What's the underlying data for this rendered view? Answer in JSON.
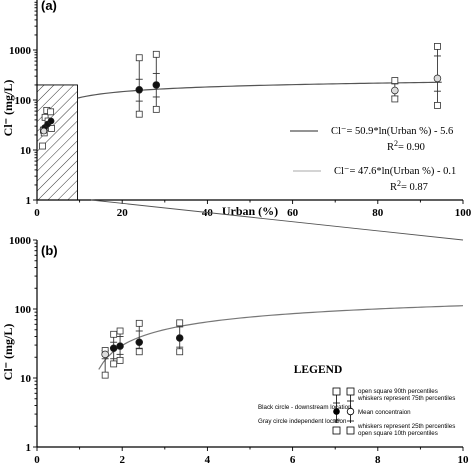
{
  "chart_data": [
    {
      "panel": "(a)",
      "type": "scatter",
      "xlabel": "Urban (%)",
      "ylabel": "Cl⁻ (mg/L)",
      "xlim": [
        0,
        100
      ],
      "ylim": [
        1,
        10000
      ],
      "yscale": "log",
      "x_ticks": [
        0,
        20,
        40,
        60,
        80,
        100
      ],
      "y_ticks": [
        1,
        10,
        100,
        1000
      ],
      "y_tick_labels": [
        "1",
        "10",
        "100",
        "1000"
      ],
      "hatched_region": {
        "x": [
          0,
          9.5
        ],
        "y": [
          1,
          200
        ]
      },
      "fits": [
        {
          "equation_lhs": "Cl⁻",
          "equation_rhs": "= 50.9*ln(Urban %) - 5.6",
          "r2_label": "R",
          "r2_value": "= 0.90",
          "color": "#555555",
          "a": 50.9,
          "b": -5.6,
          "x_range": [
            9.5,
            95
          ]
        },
        {
          "equation_lhs": "Cl⁻",
          "equation_rhs": "= 47.6*ln(Urban %) - 0.1",
          "r2_label": "R",
          "r2_value": "= 0.87",
          "color": "#bbbbbb"
        }
      ],
      "markers": [
        {
          "x": 24,
          "mean": 160,
          "p25": 95,
          "p75": 260,
          "p10": 52,
          "p90": 700,
          "group": "black"
        },
        {
          "x": 28,
          "mean": 200,
          "p25": 115,
          "p75": 340,
          "p10": 65,
          "p90": 820,
          "group": "black"
        },
        {
          "x": 84,
          "mean": 155,
          "p25": 120,
          "p75": 210,
          "p10": 105,
          "p90": 245,
          "group": "gray"
        },
        {
          "x": 94,
          "mean": 270,
          "p25": 150,
          "p75": 760,
          "p10": 78,
          "p90": 1180,
          "group": "gray"
        }
      ],
      "cluster_squares": [
        {
          "x": 1.3,
          "y": 12
        },
        {
          "x": 1.7,
          "y": 22
        },
        {
          "x": 1.9,
          "y": 45
        },
        {
          "x": 2.3,
          "y": 62
        },
        {
          "x": 2.6,
          "y": 38
        },
        {
          "x": 3.2,
          "y": 58
        },
        {
          "x": 3.4,
          "y": 27
        },
        {
          "x": 1.5,
          "y": 25
        }
      ],
      "cluster_circles": [
        {
          "x": 1.8,
          "y": 28,
          "group": "black"
        },
        {
          "x": 2.5,
          "y": 33,
          "group": "black"
        },
        {
          "x": 3.3,
          "y": 38,
          "group": "black"
        },
        {
          "x": 1.6,
          "y": 24,
          "group": "gray"
        }
      ]
    },
    {
      "panel": "(b)",
      "type": "scatter",
      "xlabel": "",
      "ylabel": "Cl⁻ (mg/L)",
      "xlim": [
        0,
        10
      ],
      "ylim": [
        1,
        1000
      ],
      "yscale": "log",
      "x_ticks": [
        0,
        2,
        4,
        6,
        8,
        10
      ],
      "y_ticks": [
        1,
        10,
        100,
        1000
      ],
      "y_tick_labels": [
        "1",
        "10",
        "100",
        "1000"
      ],
      "fit": {
        "a": 50.9,
        "b": -5.6,
        "color": "#777777",
        "x_range": [
          1.45,
          10
        ]
      },
      "markers": [
        {
          "x": 1.6,
          "mean": 22,
          "p25": 19,
          "p75": 25,
          "p10": 11,
          "p90": 25,
          "group": "gray"
        },
        {
          "x": 1.8,
          "mean": 27,
          "p25": 19,
          "p75": 33,
          "p10": 16,
          "p90": 43,
          "group": "black"
        },
        {
          "x": 1.95,
          "mean": 29,
          "p25": 22,
          "p75": 40,
          "p10": 18,
          "p90": 48,
          "group": "black"
        },
        {
          "x": 2.4,
          "mean": 33,
          "p25": 27,
          "p75": 48,
          "p10": 24,
          "p90": 62,
          "group": "black"
        },
        {
          "x": 3.35,
          "mean": 38,
          "p25": 28,
          "p75": 55,
          "p10": 24,
          "p90": 63,
          "group": "black"
        }
      ],
      "legend": {
        "title": "LEGEND",
        "lines": [
          "open square 90th percentiles",
          "whiskers represent 75th percentiles",
          "Black circle - downstream location",
          "Mean concentraion",
          "Gray circle independent location",
          "whiskers represent 25th percentiles",
          "open square 10th percentiles"
        ]
      }
    }
  ]
}
